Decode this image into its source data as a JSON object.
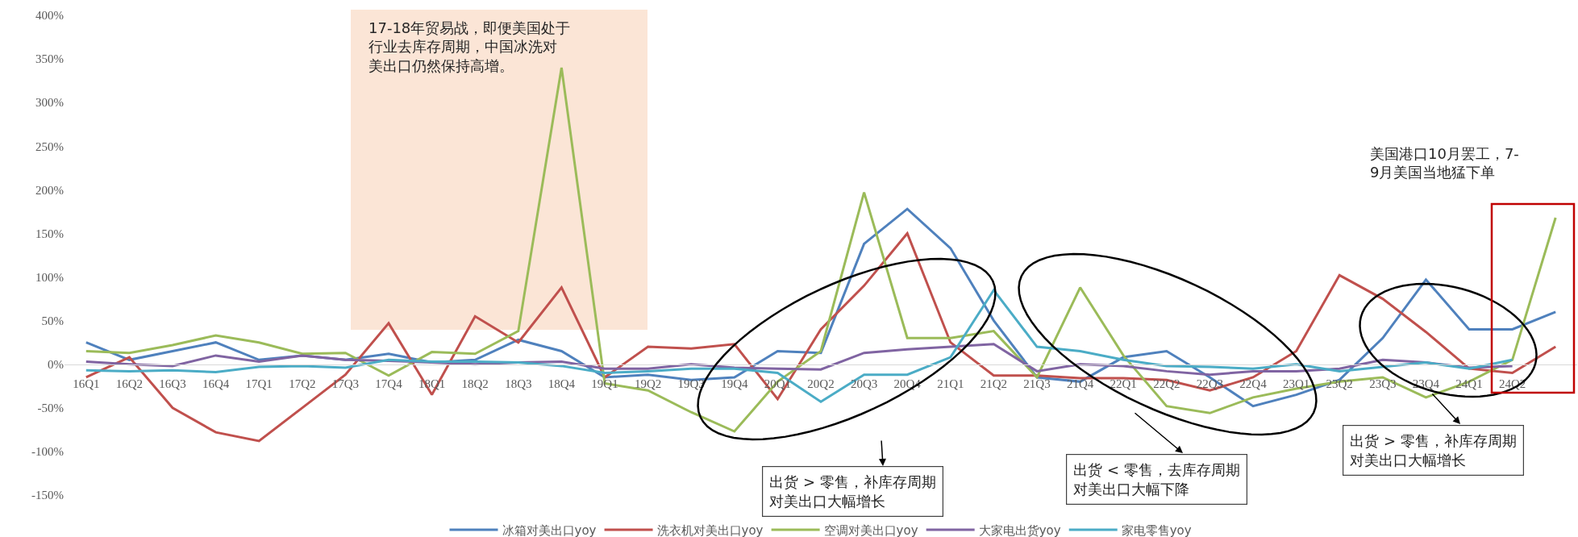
{
  "chart_data": {
    "type": "line",
    "categories": [
      "16Q1",
      "16Q2",
      "16Q3",
      "16Q4",
      "17Q1",
      "17Q2",
      "17Q3",
      "17Q4",
      "18Q1",
      "18Q2",
      "18Q3",
      "18Q4",
      "19Q1",
      "19Q2",
      "19Q3",
      "19Q4",
      "20Q1",
      "20Q2",
      "20Q3",
      "20Q4",
      "21Q1",
      "21Q2",
      "21Q3",
      "21Q4",
      "22Q1",
      "22Q2",
      "22Q3",
      "22Q4",
      "23Q1",
      "23Q2",
      "23Q3",
      "23Q4",
      "24Q1",
      "24Q2",
      null
    ],
    "series": [
      {
        "name": "冰箱对美出口yoy",
        "color": "#4f81bd",
        "values": [
          25,
          5,
          15,
          25,
          5,
          10,
          5,
          12,
          2,
          5,
          28,
          15,
          -15,
          -12,
          -18,
          -15,
          15,
          13,
          138,
          178,
          133,
          50,
          -15,
          -20,
          8,
          15,
          -15,
          -48,
          -35,
          -18,
          30,
          97,
          40,
          40,
          60
        ]
      },
      {
        "name": "洗衣机对美出口yoy",
        "color": "#c0504d",
        "values": [
          -15,
          8,
          -50,
          -78,
          -88,
          -50,
          -12,
          47,
          -35,
          55,
          25,
          88,
          -15,
          20,
          18,
          23,
          -40,
          40,
          90,
          150,
          25,
          -13,
          -13,
          -16,
          -16,
          -18,
          -30,
          -15,
          15,
          102,
          75,
          37,
          -5,
          -10,
          20
        ]
      },
      {
        "name": "空调对美出口yoy",
        "color": "#9bbb59",
        "values": [
          15,
          13,
          22,
          33,
          25,
          12,
          13,
          -13,
          14,
          12,
          38,
          340,
          -22,
          -30,
          -55,
          -77,
          -20,
          15,
          197,
          30,
          30,
          38,
          -15,
          88,
          10,
          -48,
          -56,
          -38,
          -28,
          -20,
          -15,
          -38,
          -20,
          5,
          168
        ]
      },
      {
        "name": "大家电出货yoy",
        "color": "#8064a2",
        "values": [
          3,
          0,
          -2,
          10,
          3,
          10,
          5,
          4,
          2,
          0,
          2,
          3,
          -5,
          -5,
          0,
          -4,
          -5,
          -6,
          13,
          17,
          20,
          23,
          -8,
          0,
          -2,
          -8,
          -12,
          -8,
          -8,
          -5,
          5,
          2,
          -4,
          -2,
          null
        ]
      },
      {
        "name": "家电零售yoy",
        "color": "#4bacc6",
        "values": [
          -7,
          -8,
          -7,
          -9,
          -3,
          -2,
          -4,
          5,
          3,
          3,
          2,
          -2,
          -10,
          -8,
          -5,
          -5,
          -10,
          -43,
          -12,
          -12,
          8,
          85,
          20,
          15,
          5,
          -2,
          -3,
          -5,
          0,
          -8,
          -3,
          2,
          -5,
          5,
          null
        ]
      }
    ],
    "ylim": [
      -150,
      400
    ],
    "yticks": [
      {
        "value": -150,
        "label": "-150%"
      },
      {
        "value": -100,
        "label": "-100%"
      },
      {
        "value": -50,
        "label": "-50%"
      },
      {
        "value": 0,
        "label": "0%"
      },
      {
        "value": 50,
        "label": "50%"
      },
      {
        "value": 100,
        "label": "100%"
      },
      {
        "value": 150,
        "label": "150%"
      },
      {
        "value": 200,
        "label": "200%"
      },
      {
        "value": 250,
        "label": "250%"
      },
      {
        "value": 300,
        "label": "300%"
      },
      {
        "value": 350,
        "label": "350%"
      },
      {
        "value": 400,
        "label": "400%"
      }
    ],
    "annotations": [
      "17-18年贸易战，即便美国处于行业去库存周期，中国冰洗对美出口仍然保持高增。",
      "美国港口10月罢工，7-9月美国当地猛下单",
      "出货 > 零售，补库存周期对美出口大幅增长",
      "出货 < 零售，去库存周期对美出口大幅下降",
      "出货 > 零售，补库存周期对美出口大幅增长"
    ],
    "legend": "bottom",
    "grid": false,
    "line_style": "solid"
  }
}
